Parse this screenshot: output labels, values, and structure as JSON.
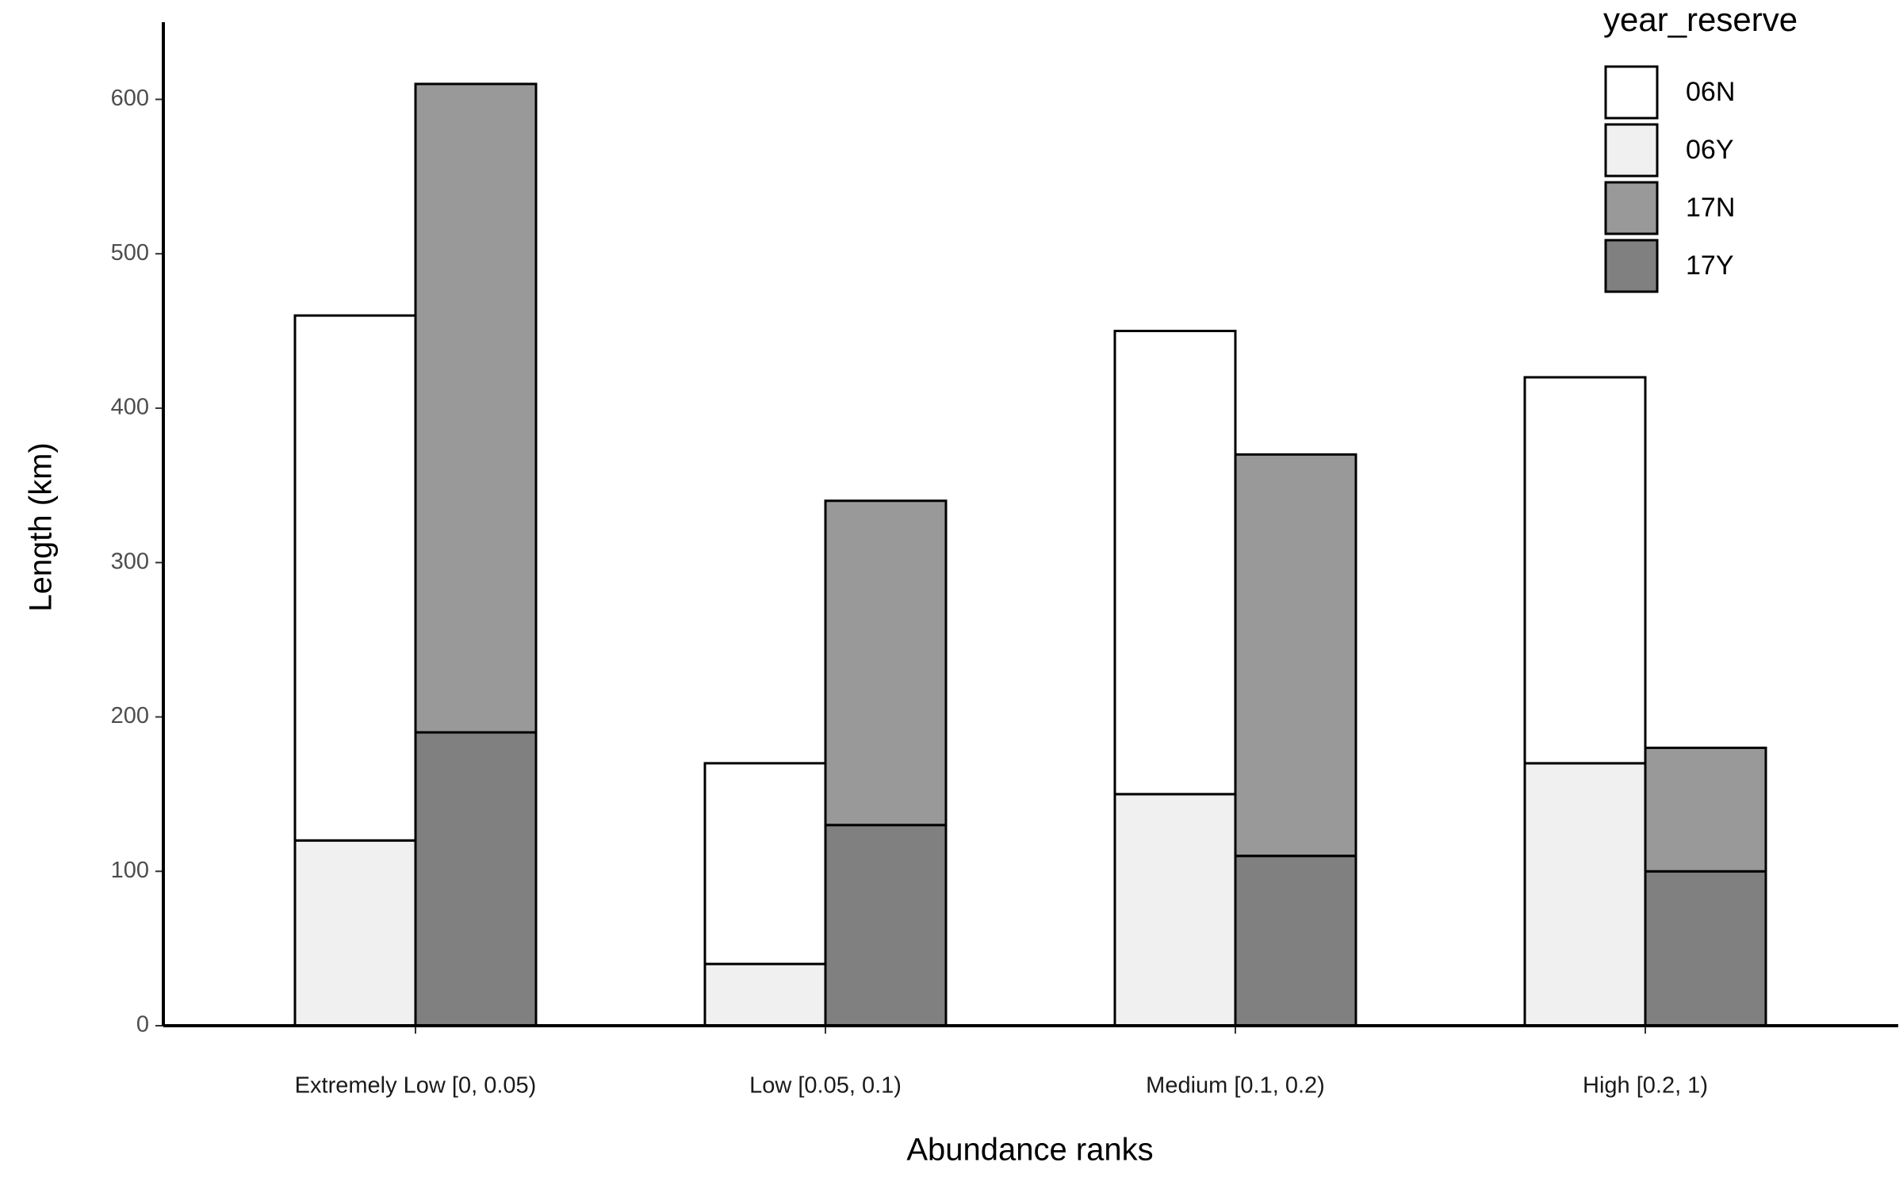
{
  "chart_data": {
    "type": "bar",
    "x_label": "Abundance ranks",
    "y_label": "Length (km)",
    "legend_title": "year_reserve",
    "legend_position": "top-right",
    "categories": [
      "Extremely Low [0, 0.05)",
      "Low [0.05, 0.1)",
      "Medium [0.1, 0.2)",
      "High [0.2, 1)"
    ],
    "series": [
      {
        "name": "06N",
        "color": "#ffffff",
        "values": [
          340,
          130,
          300,
          250
        ]
      },
      {
        "name": "06Y",
        "color": "#f0f0f0",
        "values": [
          120,
          40,
          150,
          170
        ]
      },
      {
        "name": "17N",
        "color": "#999999",
        "values": [
          420,
          210,
          260,
          80
        ]
      },
      {
        "name": "17Y",
        "color": "#808080",
        "values": [
          190,
          130,
          110,
          100
        ]
      }
    ],
    "ylim": [
      0,
      650
    ],
    "yticks": [
      0,
      100,
      200,
      300,
      400,
      500,
      600
    ]
  }
}
